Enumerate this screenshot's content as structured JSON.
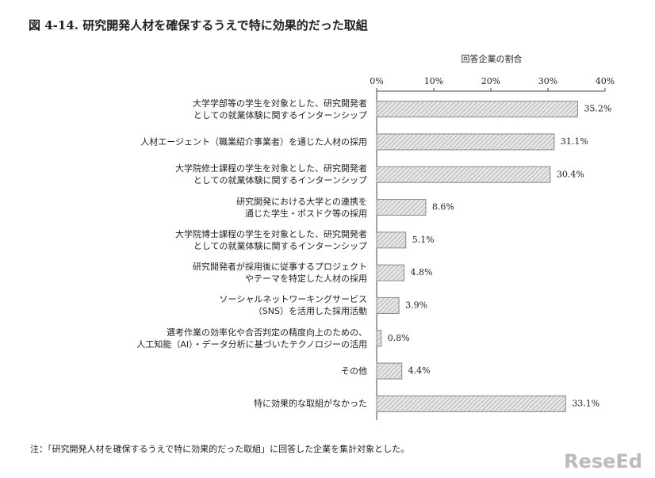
{
  "chart_data": {
    "type": "bar",
    "orientation": "horizontal",
    "title": "図 4-14. 研究開発人材を確保するうえで特に効果的だった取組",
    "x_label": "回答企業の割合",
    "categories": [
      "大学学部等の学生を対象とした、研究開発者\nとしての就業体験に関するインターンシップ",
      "人材エージェント（職業紹介事業者）を通じた人材の採用",
      "大学院修士課程の学生を対象とした、研究開発者\nとしての就業体験に関するインターンシップ",
      "研究開発における大学との連携を\n通じた学生・ポスドク等の採用",
      "大学院博士課程の学生を対象とした、研究開発者\nとしての就業体験に関するインターンシップ",
      "研究開発者が採用後に従事するプロジェクト\nやテーマを特定した人材の採用",
      "ソーシャルネットワーキングサービス\n（SNS）を活用した採用活動",
      "選考作業の効率化や合否判定の精度向上のための、\n人工知能（AI）・データ分析に基づいたテクノロジーの活用",
      "その他",
      "特に効果的な取組がなかった"
    ],
    "values": [
      35.2,
      31.1,
      30.4,
      8.6,
      5.1,
      4.8,
      3.9,
      0.8,
      4.4,
      33.1
    ],
    "value_labels": [
      "35.2%",
      "31.1%",
      "30.4%",
      "8.6%",
      "5.1%",
      "4.8%",
      "3.9%",
      "0.8%",
      "4.4%",
      "33.1%"
    ],
    "color": "#d0d0d0",
    "xlim": [
      0,
      40
    ],
    "xticks": [
      {
        "value": 0,
        "label": "0%"
      },
      {
        "value": 10,
        "label": "10%"
      },
      {
        "value": 20,
        "label": "20%"
      },
      {
        "value": 30,
        "label": "30%"
      },
      {
        "value": 40,
        "label": "40%"
      }
    ],
    "note": "注：「研究開発人材を確保するうえで特に効果的だった取組」に回答した企業を集計対象とした。",
    "watermark": "ReseEd"
  }
}
